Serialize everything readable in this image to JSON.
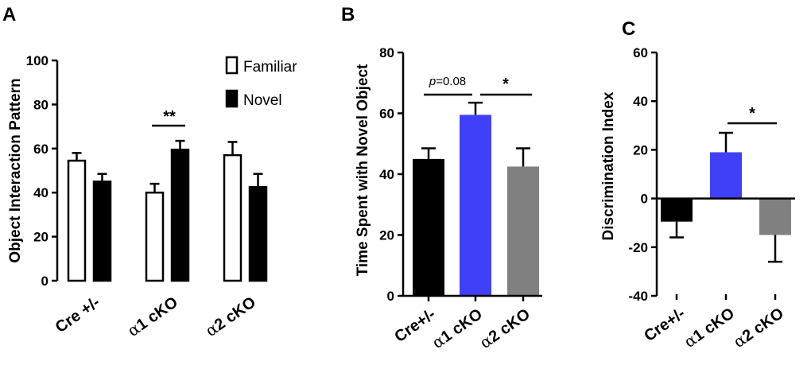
{
  "chart_data": [
    {
      "panel": "A",
      "type": "bar",
      "ylabel": "Object  Interaction Pattern",
      "ylim": [
        0,
        100
      ],
      "yticks": [
        "0",
        "20",
        "40",
        "60",
        "80",
        "100"
      ],
      "categories": [
        "Cre +/-",
        "α1 cKO",
        "α2 cKO"
      ],
      "series": [
        {
          "name": "Familiar",
          "color": "#ffffff",
          "values": [
            54.5,
            40,
            57
          ],
          "errors": [
            3.5,
            4,
            6
          ]
        },
        {
          "name": "Novel",
          "color": "#000000",
          "values": [
            45,
            59.5,
            42.5
          ],
          "errors": [
            3.5,
            4,
            6
          ]
        }
      ],
      "annotations": [
        {
          "label": "**",
          "group": 1
        }
      ],
      "legend": [
        "Familiar",
        "Novel"
      ]
    },
    {
      "panel": "B",
      "type": "bar",
      "ylabel": "Time Spent with Novel Object",
      "ylim": [
        0,
        80
      ],
      "yticks": [
        "0",
        "20",
        "40",
        "60",
        "80"
      ],
      "categories": [
        "Cre+/-",
        "α1 cKO",
        "α2 cKO"
      ],
      "values": [
        45,
        59.5,
        42.5
      ],
      "errors": [
        3.5,
        4,
        6
      ],
      "colors": [
        "#000000",
        "#4040f8",
        "#808080"
      ],
      "annotations": [
        {
          "label_prefix": "p",
          "label_value": "=0.08",
          "from": 0,
          "to": 1
        },
        {
          "label": "*",
          "from": 1,
          "to": 2
        }
      ]
    },
    {
      "panel": "C",
      "type": "bar",
      "ylabel": "Discrimination Index",
      "ylim": [
        -40,
        60
      ],
      "yticks": [
        "-40",
        "-20",
        "0",
        "20",
        "40",
        "60"
      ],
      "categories": [
        "Cre+/-",
        "α1 cKO",
        "α2 cKO"
      ],
      "values": [
        -9.5,
        19,
        -15
      ],
      "errors": [
        6.5,
        8,
        11
      ],
      "colors": [
        "#000000",
        "#4040f8",
        "#808080"
      ],
      "annotations": [
        {
          "label": "*",
          "from": 1,
          "to": 2
        }
      ]
    }
  ]
}
